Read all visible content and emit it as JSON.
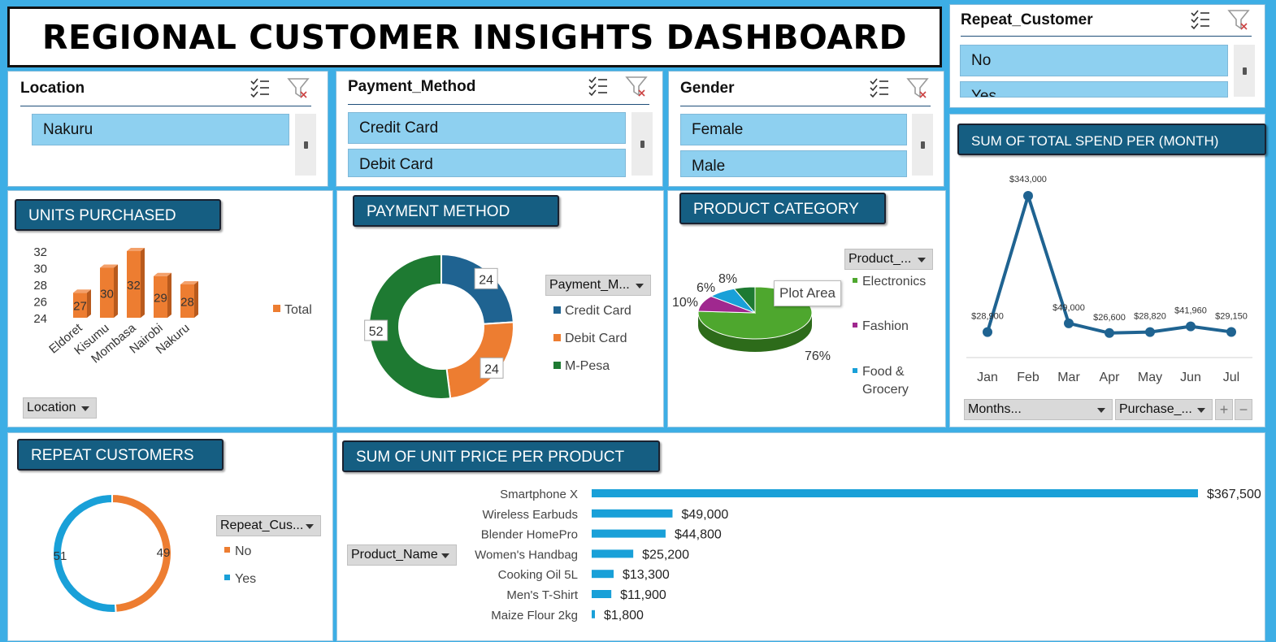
{
  "title": "REGIONAL CUSTOMER INSIGHTS DASHBOARD",
  "slicers": {
    "location": {
      "title": "Location",
      "items": [
        "Nakuru"
      ]
    },
    "payment": {
      "title": "Payment_Method",
      "items": [
        "Credit Card",
        "Debit Card"
      ]
    },
    "gender": {
      "title": "Gender",
      "items": [
        "Female",
        "Male"
      ]
    },
    "repeat": {
      "title": "Repeat_Customer",
      "items": [
        "No",
        "Yes"
      ]
    }
  },
  "colors": {
    "accent": "#155e82",
    "orange": "#ed7d31",
    "blue": "#1f6391",
    "green": "#1e7a32",
    "lightblue": "#19a0d8",
    "pie_green": "#4ea72e",
    "pie_purple": "#a0288f"
  },
  "chart_data": [
    {
      "id": "units",
      "type": "bar",
      "title": "UNITS PURCHASED",
      "categories": [
        "Eldoret",
        "Kisumu",
        "Mombasa",
        "Nairobi",
        "Nakuru"
      ],
      "series": [
        {
          "name": "Total",
          "values": [
            27,
            30,
            32,
            29,
            28
          ]
        }
      ],
      "yticks": [
        "32",
        "30",
        "28",
        "26",
        "24"
      ],
      "ylim": [
        24,
        32
      ],
      "field_button": "Location"
    },
    {
      "id": "payment",
      "type": "pie",
      "title": "PAYMENT METHOD",
      "labels": [
        "Credit Card",
        "Debit Card",
        "M-Pesa"
      ],
      "values": [
        24,
        24,
        52
      ],
      "field_button": "Payment_M..."
    },
    {
      "id": "category",
      "type": "pie",
      "title": "PRODUCT CATEGORY",
      "labels": [
        "Electronics",
        "Fashion",
        "Food & Grocery"
      ],
      "legend_lines": [
        [
          "Electronics"
        ],
        [
          "Fashion"
        ],
        [
          "Food &",
          "Grocery"
        ]
      ],
      "values": [
        76,
        10,
        8
      ],
      "value_labels": [
        "76%",
        "10%",
        "8%"
      ],
      "extra_label": "6%",
      "tooltip": "Plot Area",
      "field_button": "Product_..."
    },
    {
      "id": "spend",
      "type": "line",
      "title": "SUM OF TOTAL SPEND PER (MONTH)",
      "categories": [
        "Jan",
        "Feb",
        "Mar",
        "Apr",
        "May",
        "Jun",
        "Jul"
      ],
      "values": [
        28900,
        343000,
        49000,
        26600,
        28820,
        41960,
        29150
      ],
      "value_labels": [
        "$28,900",
        "$343,000",
        "$49,000",
        "$26,600",
        "$28,820",
        "$41,960",
        "$29,150"
      ],
      "ylim": [
        0,
        360000
      ],
      "field_buttons": [
        "Months...",
        "Purchase_..."
      ]
    },
    {
      "id": "repeat",
      "type": "pie",
      "title": "REPEAT CUSTOMERS",
      "labels": [
        "No",
        "Yes"
      ],
      "values": [
        49,
        51
      ],
      "field_button": "Repeat_Cus..."
    },
    {
      "id": "unitprice",
      "type": "bar",
      "orientation": "horizontal",
      "title": "SUM OF UNIT PRICE PER PRODUCT",
      "categories": [
        "Smartphone X",
        "Wireless Earbuds",
        "Blender HomePro",
        "Women's Handbag",
        "Cooking Oil 5L",
        "Men's T-Shirt",
        "Maize Flour 2kg"
      ],
      "values": [
        367500,
        49000,
        44800,
        25200,
        13300,
        11900,
        1800
      ],
      "value_labels": [
        "$367,500",
        "$49,000",
        "$44,800",
        "$25,200",
        "$13,300",
        "$11,900",
        "$1,800"
      ],
      "field_button": "Product_Name"
    }
  ]
}
